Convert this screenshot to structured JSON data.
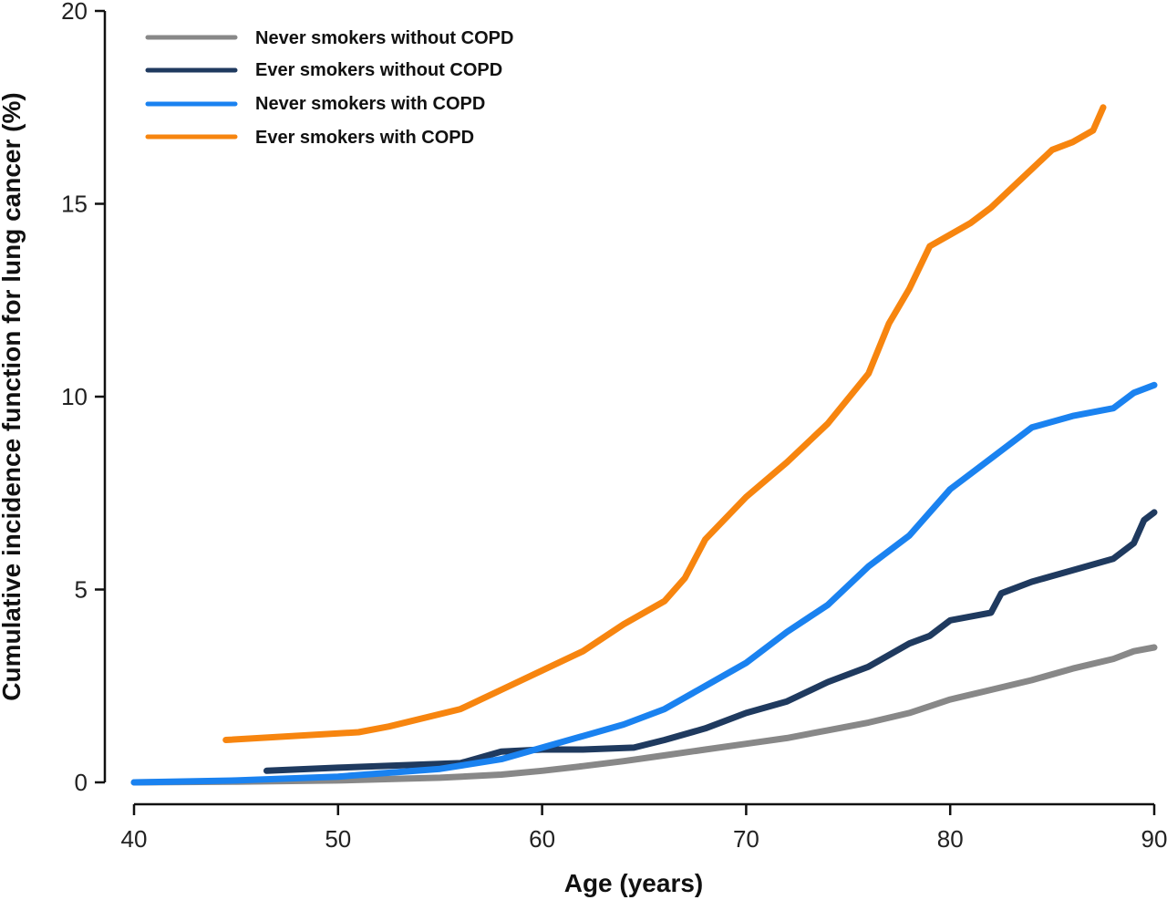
{
  "chart_data": {
    "type": "line",
    "title": "",
    "xlabel": "Age (years)",
    "ylabel": "Cumulative incidence function for lung cancer (%)",
    "xlim": [
      40,
      90
    ],
    "ylim": [
      0,
      20
    ],
    "xticks": [
      "40",
      "50",
      "60",
      "70",
      "80",
      "90"
    ],
    "yticks": [
      "0",
      "5",
      "10",
      "15",
      "20"
    ],
    "legend_position": "top-left",
    "series": [
      {
        "name": "Never smokers without COPD",
        "color": "#888888",
        "x": [
          40,
          45,
          50,
          55,
          58,
          60,
          62,
          64,
          66,
          68,
          70,
          72,
          74,
          76,
          78,
          80,
          82,
          84,
          86,
          88,
          89,
          90
        ],
        "y": [
          0,
          0.02,
          0.05,
          0.12,
          0.2,
          0.3,
          0.42,
          0.55,
          0.7,
          0.85,
          1.0,
          1.15,
          1.35,
          1.55,
          1.8,
          2.15,
          2.4,
          2.65,
          2.95,
          3.2,
          3.4,
          3.5
        ]
      },
      {
        "name": "Ever smokers without COPD",
        "color": "#1f3a5f",
        "x": [
          46.5,
          50,
          56,
          58,
          60,
          62,
          64.5,
          66,
          68,
          70,
          72,
          74,
          76,
          78,
          79,
          80,
          82,
          82.5,
          84,
          86,
          88,
          89,
          89.5,
          90
        ],
        "y": [
          0.3,
          0.38,
          0.5,
          0.8,
          0.85,
          0.85,
          0.9,
          1.1,
          1.4,
          1.8,
          2.1,
          2.6,
          3.0,
          3.6,
          3.8,
          4.2,
          4.4,
          4.9,
          5.2,
          5.5,
          5.8,
          6.2,
          6.8,
          7.0
        ]
      },
      {
        "name": "Never smokers with COPD",
        "color": "#1a82f0",
        "x": [
          40,
          45,
          50,
          55,
          58,
          60,
          62,
          64,
          66,
          68,
          70,
          72,
          74,
          76,
          78,
          80,
          82,
          84,
          86,
          88,
          89,
          90
        ],
        "y": [
          0,
          0.05,
          0.15,
          0.35,
          0.6,
          0.9,
          1.2,
          1.5,
          1.9,
          2.5,
          3.1,
          3.9,
          4.6,
          5.6,
          6.4,
          7.6,
          8.4,
          9.2,
          9.5,
          9.7,
          10.1,
          10.3
        ]
      },
      {
        "name": "Ever smokers with COPD",
        "color": "#f7850f",
        "x": [
          44.5,
          51,
          52.5,
          56,
          58,
          60,
          62,
          64,
          66,
          67,
          68,
          70,
          72,
          74,
          76,
          77,
          78,
          79,
          80,
          81,
          82,
          83,
          84,
          85,
          86,
          87,
          87.5
        ],
        "y": [
          1.1,
          1.3,
          1.45,
          1.9,
          2.4,
          2.9,
          3.4,
          4.1,
          4.7,
          5.3,
          6.3,
          7.4,
          8.3,
          9.3,
          10.6,
          11.9,
          12.8,
          13.9,
          14.2,
          14.5,
          14.9,
          15.4,
          15.9,
          16.4,
          16.6,
          16.9,
          17.5
        ]
      }
    ]
  }
}
